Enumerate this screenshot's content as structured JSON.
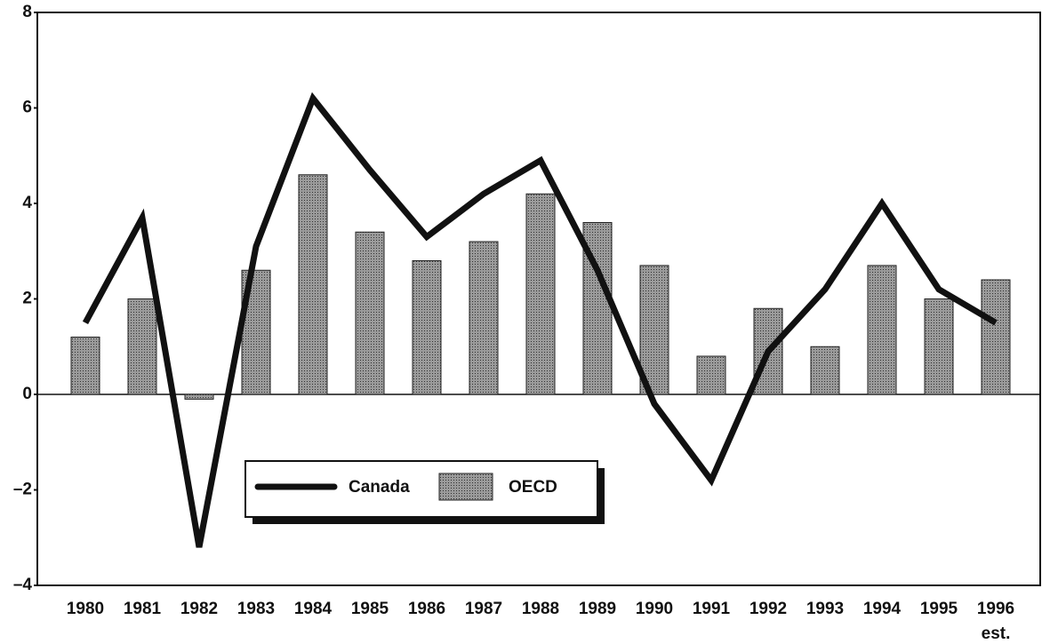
{
  "chart_data": {
    "type": "bar_line",
    "categories": [
      "1980",
      "1981",
      "1982",
      "1983",
      "1984",
      "1985",
      "1986",
      "1987",
      "1988",
      "1989",
      "1990",
      "1991",
      "1992",
      "1993",
      "1994",
      "1995",
      "1996"
    ],
    "annotation": "est.",
    "series": [
      {
        "name": "Canada",
        "type": "line",
        "color": "#111111",
        "values": [
          1.5,
          3.7,
          -3.2,
          3.1,
          6.2,
          4.7,
          3.3,
          4.2,
          4.9,
          2.6,
          -0.2,
          -1.8,
          0.9,
          2.2,
          4.0,
          2.2,
          1.5
        ]
      },
      {
        "name": "OECD",
        "type": "bar",
        "color": "#8a8a8a",
        "values": [
          1.2,
          2.0,
          -0.1,
          2.6,
          4.6,
          3.4,
          2.8,
          3.2,
          4.2,
          3.6,
          2.7,
          0.8,
          1.8,
          1.0,
          2.7,
          2.0,
          2.4
        ]
      }
    ],
    "ylim": [
      -4,
      8
    ],
    "yticks": [
      {
        "value": -4,
        "label": "–4"
      },
      {
        "value": -2,
        "label": "–2"
      },
      0,
      2,
      4,
      6,
      8
    ],
    "legend": "lower-center"
  }
}
